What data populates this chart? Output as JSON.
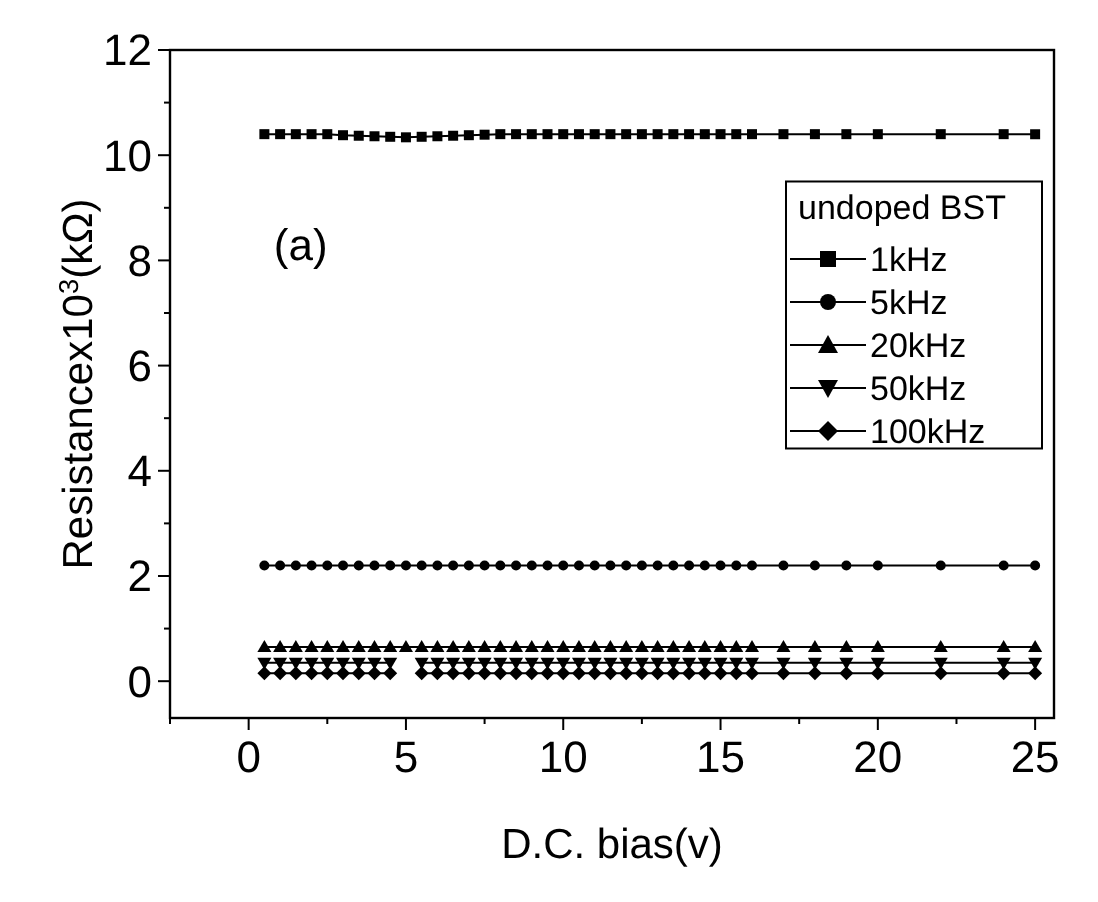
{
  "chart_data": {
    "type": "line",
    "xlabel": "D.C. bias(v)",
    "ylabel": "Resistancex10$^{3}$(kΩ)",
    "legend_title": "undoped BST",
    "legend": "top right",
    "annotations": [
      "(a)"
    ],
    "xlim": [
      -2.5,
      25.6
    ],
    "ylim": [
      -0.7,
      12
    ],
    "xticks": [
      0,
      5,
      10,
      15,
      20,
      25
    ],
    "yticks": [
      0,
      2,
      4,
      6,
      8,
      10,
      12
    ],
    "grid": false,
    "line_style": "solid",
    "x": [
      0.5,
      1,
      1.5,
      2,
      2.5,
      3,
      3.5,
      4,
      4.5,
      5,
      5.5,
      6,
      6.5,
      7,
      7.5,
      8,
      8.5,
      9,
      9.5,
      10,
      10.5,
      11,
      11.5,
      12,
      12.5,
      13,
      13.5,
      14,
      14.5,
      15,
      15.5,
      16,
      17,
      18,
      19,
      20,
      22,
      24,
      25
    ],
    "series": [
      {
        "name": "1kHz",
        "color": "#000000",
        "marker": "square",
        "values": [
          10.4,
          10.4,
          10.4,
          10.4,
          10.4,
          10.38,
          10.37,
          10.36,
          10.35,
          10.34,
          10.35,
          10.36,
          10.37,
          10.38,
          10.39,
          10.4,
          10.4,
          10.4,
          10.4,
          10.4,
          10.4,
          10.4,
          10.4,
          10.4,
          10.4,
          10.4,
          10.4,
          10.4,
          10.4,
          10.4,
          10.4,
          10.4,
          10.4,
          10.4,
          10.4,
          10.4,
          10.4,
          10.4,
          10.4
        ]
      },
      {
        "name": "5kHz",
        "color": "#000000",
        "marker": "circle",
        "values": [
          2.2,
          2.2,
          2.2,
          2.2,
          2.2,
          2.2,
          2.2,
          2.2,
          2.2,
          2.2,
          2.2,
          2.2,
          2.2,
          2.2,
          2.2,
          2.2,
          2.2,
          2.2,
          2.2,
          2.2,
          2.2,
          2.2,
          2.2,
          2.2,
          2.2,
          2.2,
          2.2,
          2.2,
          2.2,
          2.2,
          2.2,
          2.2,
          2.2,
          2.2,
          2.2,
          2.2,
          2.2,
          2.2,
          2.2
        ]
      },
      {
        "name": "20kHz",
        "color": "#000000",
        "marker": "triangle",
        "values": [
          0.65,
          0.65,
          0.65,
          0.65,
          0.65,
          0.65,
          0.65,
          0.65,
          0.65,
          0.65,
          0.65,
          0.65,
          0.65,
          0.65,
          0.65,
          0.65,
          0.65,
          0.65,
          0.65,
          0.65,
          0.65,
          0.65,
          0.65,
          0.65,
          0.65,
          0.65,
          0.65,
          0.65,
          0.65,
          0.65,
          0.65,
          0.65,
          0.65,
          0.65,
          0.65,
          0.65,
          0.65,
          0.65,
          0.65
        ]
      },
      {
        "name": "50kHz",
        "color": "#000000",
        "marker": "triangle-down",
        "values": [
          0.35,
          0.35,
          0.35,
          0.35,
          0.35,
          0.35,
          0.35,
          0.35,
          0.35,
          null,
          0.35,
          0.35,
          0.35,
          0.35,
          0.35,
          0.35,
          0.35,
          0.35,
          0.35,
          0.35,
          0.35,
          0.35,
          0.35,
          0.35,
          0.35,
          0.35,
          0.35,
          0.35,
          0.35,
          0.35,
          0.35,
          0.35,
          0.35,
          0.35,
          0.35,
          0.35,
          0.35,
          0.35,
          0.35
        ]
      },
      {
        "name": "100kHz",
        "color": "#000000",
        "marker": "diamond",
        "values": [
          0.15,
          0.15,
          0.15,
          0.15,
          0.15,
          0.15,
          0.15,
          0.15,
          0.15,
          null,
          0.15,
          0.15,
          0.15,
          0.15,
          0.15,
          0.15,
          0.15,
          0.15,
          0.15,
          0.15,
          0.15,
          0.15,
          0.15,
          0.15,
          0.15,
          0.15,
          0.15,
          0.15,
          0.15,
          0.15,
          0.15,
          0.15,
          0.15,
          0.15,
          0.15,
          0.15,
          0.15,
          0.15,
          0.15
        ]
      }
    ]
  }
}
